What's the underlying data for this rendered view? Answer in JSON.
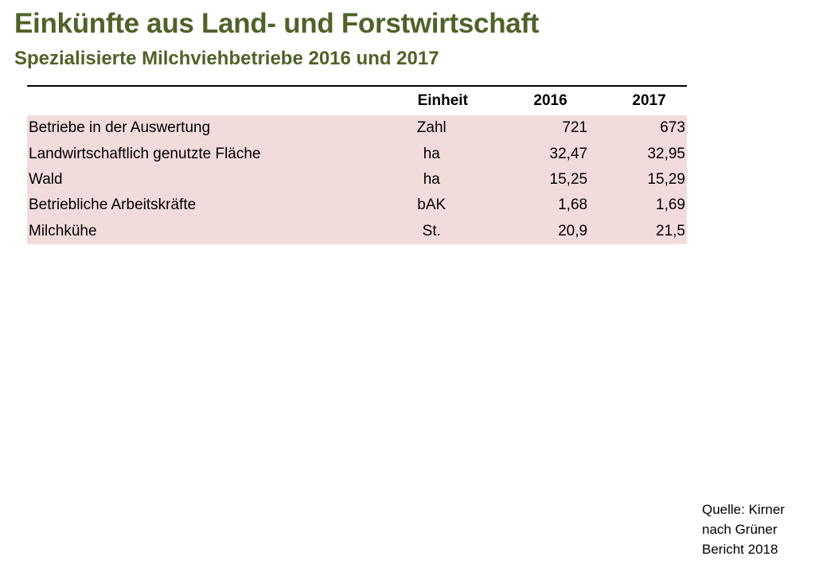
{
  "header": {
    "title": "Einkünfte aus Land- und Forstwirtschaft",
    "subtitle": "Spezialisierte Milchviehbetriebe 2016 und 2017"
  },
  "table": {
    "columns": [
      "",
      "Einheit",
      "2016",
      "2017"
    ],
    "rows": [
      {
        "label": "Betriebe in der Auswertung",
        "unit": "Zahl",
        "v2016": "721",
        "v2017": "673"
      },
      {
        "label": "Landwirtschaftlich genutzte Fläche",
        "unit": "ha",
        "v2016": "32,47",
        "v2017": "32,95"
      },
      {
        "label": "Wald",
        "unit": "ha",
        "v2016": "15,25",
        "v2017": "15,29"
      },
      {
        "label": "Betriebliche Arbeitskräfte",
        "unit": "bAK",
        "v2016": "1,68",
        "v2017": "1,69"
      },
      {
        "label": "Milchkühe",
        "unit": "St.",
        "v2016": "20,9",
        "v2017": "21,5"
      }
    ],
    "row_background": "#f2dcdb"
  },
  "source": {
    "line1": "Quelle: Kirner",
    "line2": "nach Grüner",
    "line3": "Bericht 2018"
  },
  "colors": {
    "title": "#4f6228"
  }
}
